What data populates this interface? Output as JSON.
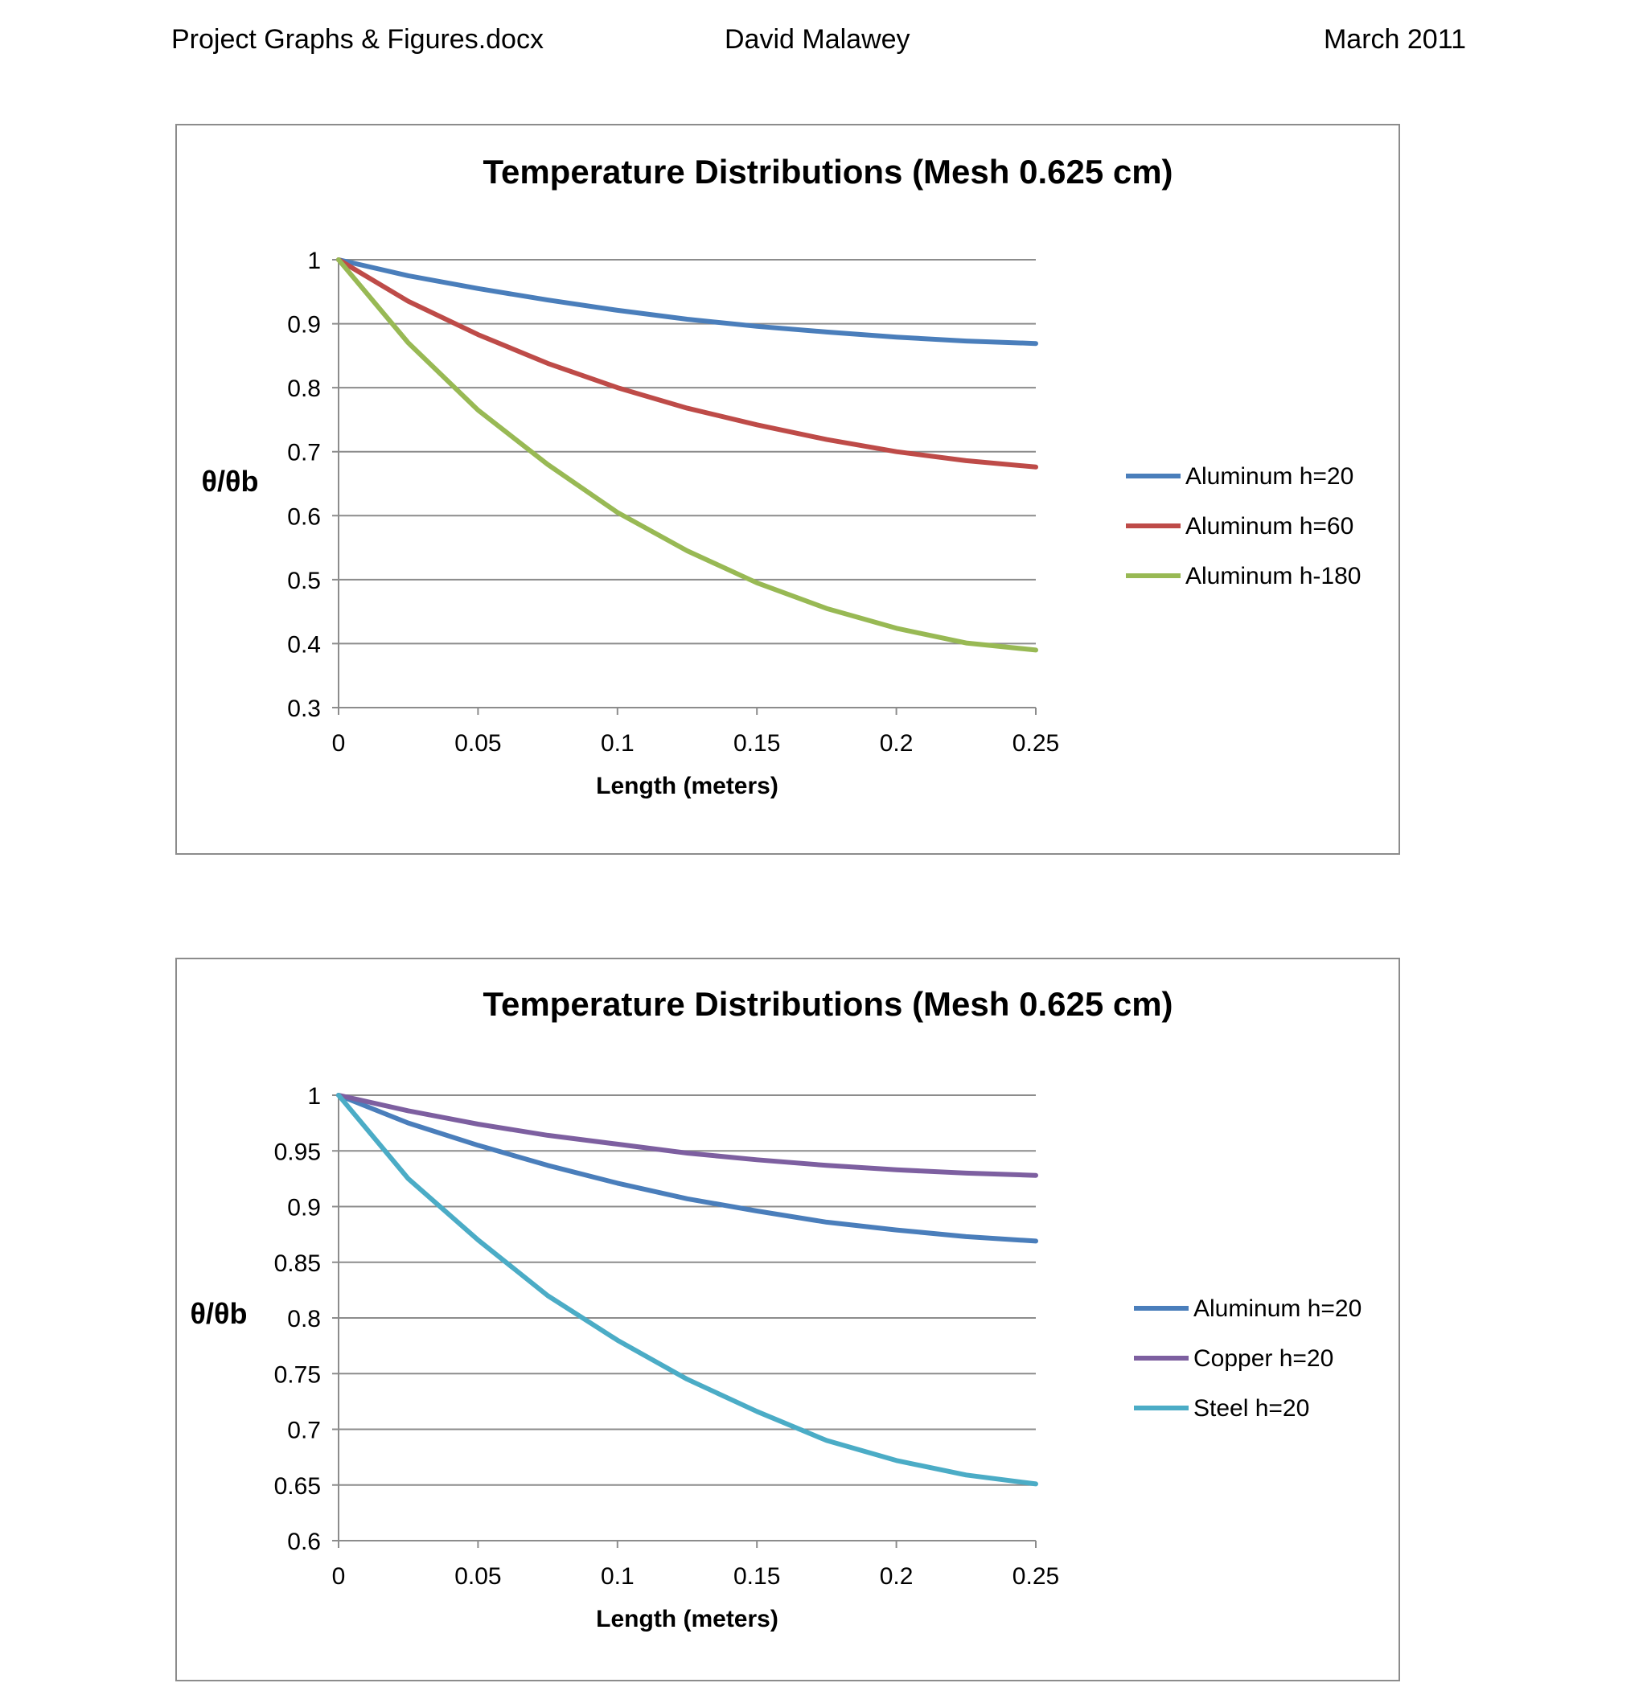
{
  "header": {
    "filename": "Project Graphs & Figures.docx",
    "author": "David Malawey",
    "date": "March 2011"
  },
  "chart_data": [
    {
      "type": "line",
      "title": "Temperature Distributions (Mesh  0.625 cm)",
      "xlabel": "Length (meters)",
      "ylabel": "θ/θb",
      "xlim": [
        0,
        0.25
      ],
      "ylim": [
        0.3,
        1
      ],
      "xticks": [
        "0",
        "0.05",
        "0.1",
        "0.15",
        "0.2",
        "0.25"
      ],
      "yticks": [
        "0.3",
        "0.4",
        "0.5",
        "0.6",
        "0.7",
        "0.8",
        "0.9",
        "1"
      ],
      "grid": true,
      "legend_position": "right",
      "x": [
        0,
        0.025,
        0.05,
        0.075,
        0.1,
        0.125,
        0.15,
        0.175,
        0.2,
        0.225,
        0.25
      ],
      "series": [
        {
          "name": "Aluminum h=20",
          "color": "#4a7ebb",
          "values": [
            1,
            0.975,
            0.955,
            0.937,
            0.921,
            0.907,
            0.896,
            0.887,
            0.879,
            0.873,
            0.869
          ]
        },
        {
          "name": "Aluminum h=60",
          "color": "#be4b48",
          "values": [
            1,
            0.935,
            0.883,
            0.838,
            0.8,
            0.768,
            0.742,
            0.719,
            0.7,
            0.686,
            0.676
          ]
        },
        {
          "name": "Aluminum h-180",
          "color": "#98b954",
          "values": [
            1,
            0.87,
            0.765,
            0.68,
            0.605,
            0.545,
            0.495,
            0.455,
            0.424,
            0.401,
            0.39
          ]
        }
      ]
    },
    {
      "type": "line",
      "title": "Temperature Distributions (Mesh  0.625 cm)",
      "xlabel": "Length (meters)",
      "ylabel": "θ/θb",
      "xlim": [
        0,
        0.25
      ],
      "ylim": [
        0.6,
        1
      ],
      "xticks": [
        "0",
        "0.05",
        "0.1",
        "0.15",
        "0.2",
        "0.25"
      ],
      "yticks": [
        "0.6",
        "0.65",
        "0.7",
        "0.75",
        "0.8",
        "0.85",
        "0.9",
        "0.95",
        "1"
      ],
      "grid": true,
      "legend_position": "right",
      "x": [
        0,
        0.025,
        0.05,
        0.075,
        0.1,
        0.125,
        0.15,
        0.175,
        0.2,
        0.225,
        0.25
      ],
      "series": [
        {
          "name": "Aluminum h=20",
          "color": "#4a7ebb",
          "values": [
            1,
            0.975,
            0.955,
            0.937,
            0.921,
            0.907,
            0.896,
            0.886,
            0.879,
            0.873,
            0.869
          ]
        },
        {
          "name": "Copper h=20",
          "color": "#7d5fa0",
          "values": [
            1,
            0.986,
            0.974,
            0.964,
            0.956,
            0.948,
            0.942,
            0.937,
            0.933,
            0.93,
            0.928
          ]
        },
        {
          "name": "Steel h=20",
          "color": "#4bacc6",
          "values": [
            1,
            0.925,
            0.87,
            0.82,
            0.78,
            0.745,
            0.716,
            0.69,
            0.672,
            0.659,
            0.651
          ]
        }
      ]
    }
  ]
}
